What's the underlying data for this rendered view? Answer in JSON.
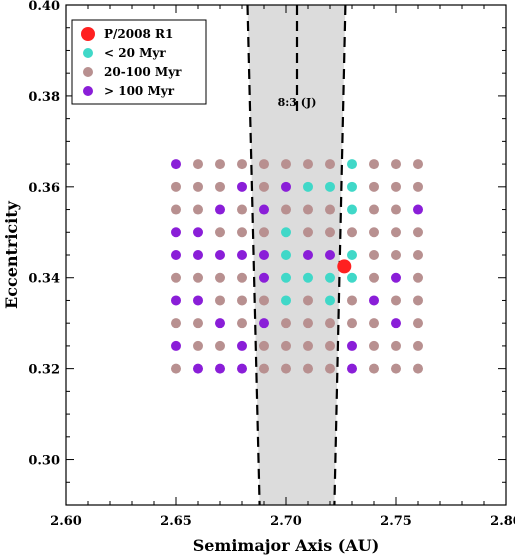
{
  "chart_data": {
    "type": "scatter",
    "xlabel": "Semimajor Axis (AU)",
    "ylabel": "Eccentricity",
    "xlim": [
      2.6,
      2.8
    ],
    "ylim": [
      0.29,
      0.4
    ],
    "xticks": [
      "2.60",
      "2.65",
      "2.70",
      "2.75",
      "2.80"
    ],
    "yticks": [
      "0.30",
      "0.32",
      "0.34",
      "0.36",
      "0.38",
      "0.40"
    ],
    "grid": false,
    "legend_position": "top-left",
    "colors": {
      "P/2008 R1": "#ff2020",
      "< 20 Myr": "#40d8c8",
      "20-100 Myr": "#b89090",
      "> 100 Myr": "#8a1ed8"
    },
    "resonance": {
      "label": "8:3 (J)",
      "left_boundary": [
        [
          2.6825,
          0.4
        ],
        [
          2.688,
          0.29
        ]
      ],
      "right_boundary": [
        [
          2.727,
          0.4
        ],
        [
          2.722,
          0.29
        ]
      ],
      "center_line": [
        [
          2.705,
          0.4
        ],
        [
          2.705,
          0.376
        ]
      ]
    },
    "grid_x": [
      2.65,
      2.66,
      2.67,
      2.68,
      2.69,
      2.7,
      2.71,
      2.72,
      2.73,
      2.74,
      2.75,
      2.76
    ],
    "grid_y": [
      0.365,
      0.36,
      0.355,
      0.35,
      0.345,
      0.34,
      0.335,
      0.33,
      0.325,
      0.32
    ],
    "grid_classes": [
      "PBBBBBBBCBBB",
      "BBBPBPCCCBBB",
      "BBPBPBBBCBBP",
      "PPBBBCBBBBBB",
      "PPPPPCPPCBBB",
      "BBBBPCCCCBPB",
      "PPBBBCBCBPBB",
      "BBPBPBBBBBPB",
      "PBBPBBBBPBBB",
      "BPPPBBBBPBBB"
    ],
    "series": [
      {
        "name": "P/2008 R1",
        "key": "P",
        "points": [
          [
            2.7265,
            0.3425
          ]
        ]
      },
      {
        "name": "< 20 Myr",
        "key": "C"
      },
      {
        "name": "20-100 Myr",
        "key": "B"
      },
      {
        "name": "> 100 Myr",
        "key": "P2"
      }
    ]
  }
}
